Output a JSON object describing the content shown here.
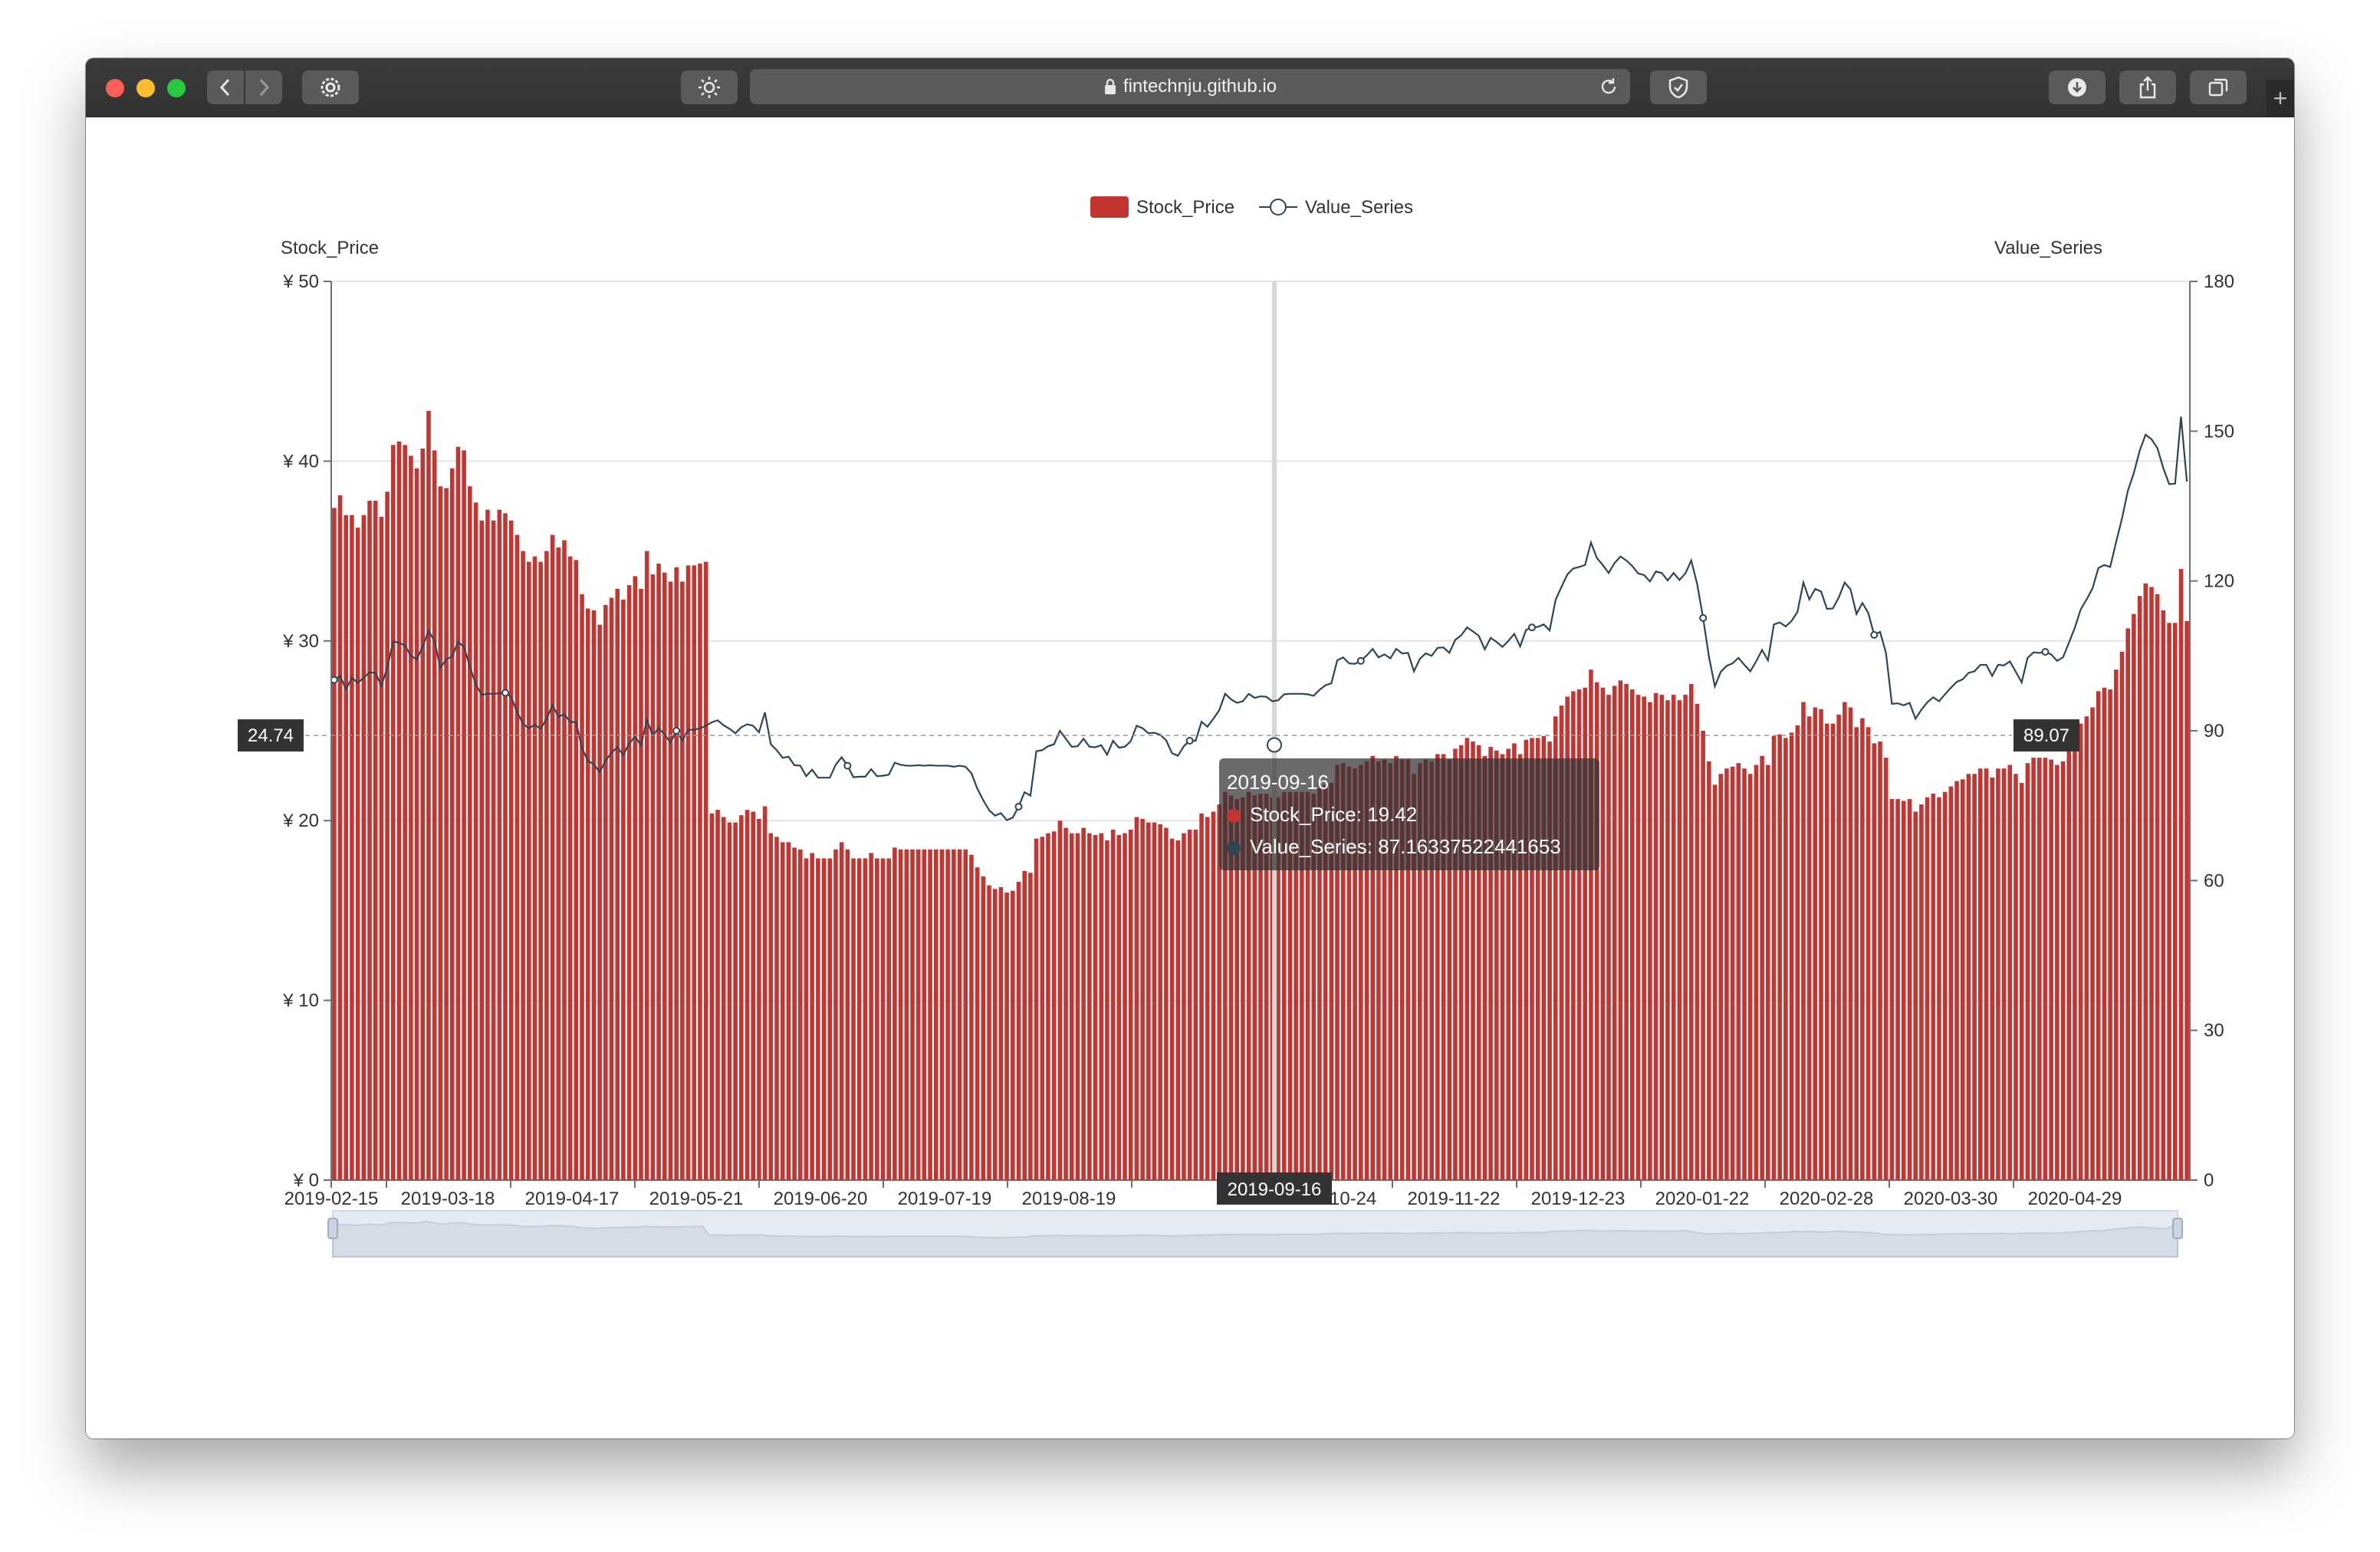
{
  "browser": {
    "url": "fintechnju.github.io"
  },
  "colors": {
    "bar": "#c23531",
    "line": "#2f4554",
    "traffic_red": "#ff5f57",
    "traffic_yellow": "#febc2e",
    "traffic_green": "#28c840"
  },
  "icons": [
    "back-icon",
    "forward-icon",
    "gear-icon",
    "brightness-icon",
    "lock-icon",
    "reload-icon",
    "shield-icon",
    "download-icon",
    "share-icon",
    "tabs-icon",
    "plus-icon"
  ],
  "tooltip": {
    "date": "2019-09-16",
    "stock_line": "Stock_Price: 19.42",
    "value_line": "Value_Series: 87.16337522441653"
  },
  "axis_pointer": {
    "left_value": "24.74",
    "right_value": "89.07",
    "x_value": "2019-09-16"
  },
  "chart_data": {
    "type": "bar",
    "legend": [
      "Stock_Price",
      "Value_Series"
    ],
    "legend_position": "top-center",
    "y_left": {
      "name": "Stock_Price",
      "min": 0,
      "max": 50,
      "ticks": [
        "¥ 0",
        "¥ 10",
        "¥ 20",
        "¥ 30",
        "¥ 40",
        "¥ 50"
      ]
    },
    "y_right": {
      "name": "Value_Series",
      "min": 0,
      "max": 180,
      "ticks": [
        "0",
        "30",
        "60",
        "90",
        "120",
        "150",
        "180"
      ]
    },
    "x_ticks": [
      "2019-02-15",
      "2019-03-18",
      "2019-04-17",
      "2019-05-21",
      "2019-06-20",
      "2019-07-19",
      "2019-08-19",
      "2019-09-16",
      "2019-10-24",
      "2019-11-22",
      "2019-12-23",
      "2020-01-22",
      "2020-02-28",
      "2020-03-30",
      "2020-04-29"
    ],
    "grid": true,
    "datazoom": true,
    "series": [
      {
        "name": "Stock_Price",
        "type": "bar",
        "values": [
          37.4,
          38.1,
          37.0,
          37.0,
          36.3,
          37.0,
          37.8,
          37.8,
          36.9,
          38.3,
          40.9,
          41.1,
          40.9,
          40.3,
          39.6,
          40.7,
          42.8,
          40.6,
          38.6,
          38.5,
          39.6,
          40.8,
          40.6,
          38.6,
          37.7,
          36.7,
          37.3,
          36.7,
          37.3,
          37.1,
          36.7,
          35.9,
          35.0,
          34.4,
          34.7,
          34.4,
          35.0,
          35.9,
          35.2,
          35.6,
          34.7,
          34.5,
          32.6,
          31.8,
          31.7,
          30.9,
          32.0,
          32.4,
          32.9,
          32.3,
          33.1,
          33.6,
          32.9,
          35.0,
          33.7,
          34.3,
          33.8,
          33.3,
          34.1,
          33.3,
          34.2,
          34.2,
          34.3,
          34.4,
          20.4,
          20.6,
          20.2,
          19.9,
          19.9,
          20.3,
          20.6,
          20.5,
          20.1,
          20.8,
          19.3,
          19.1,
          18.8,
          18.8,
          18.5,
          18.4,
          17.9,
          18.2,
          17.9,
          17.9,
          17.9,
          18.4,
          18.8,
          18.4,
          17.9,
          17.9,
          17.9,
          18.2,
          17.9,
          17.9,
          17.9,
          18.5,
          18.4,
          18.4,
          18.4,
          18.4,
          18.4,
          18.4,
          18.4,
          18.4,
          18.4,
          18.4,
          18.4,
          18.4,
          18.1,
          17.4,
          16.9,
          16.4,
          16.2,
          16.3,
          16.0,
          16.1,
          16.6,
          17.2,
          17.1,
          19.0,
          19.1,
          19.3,
          19.4,
          20.0,
          19.6,
          19.3,
          19.3,
          19.6,
          19.3,
          19.2,
          19.3,
          18.9,
          19.5,
          19.2,
          19.3,
          19.5,
          20.2,
          20.1,
          19.9,
          19.9,
          19.8,
          19.6,
          19.0,
          18.9,
          19.3,
          19.5,
          19.5,
          20.4,
          20.2,
          20.5,
          20.9,
          21.6,
          21.4,
          21.2,
          21.3,
          21.6,
          21.4,
          21.5,
          21.5,
          21.3,
          21.3,
          21.6,
          21.6,
          21.6,
          21.6,
          21.6,
          21.5,
          21.8,
          22.0,
          22.1,
          23.1,
          23.2,
          23.0,
          22.9,
          23.1,
          23.3,
          23.6,
          23.3,
          23.4,
          23.2,
          23.6,
          23.4,
          23.4,
          22.6,
          23.2,
          23.4,
          23.3,
          23.7,
          23.7,
          23.4,
          24.0,
          24.2,
          24.6,
          24.4,
          24.2,
          23.6,
          24.1,
          23.9,
          23.7,
          24.0,
          24.3,
          23.7,
          24.5,
          24.6,
          24.6,
          24.7,
          24.4,
          25.8,
          26.4,
          26.9,
          27.2,
          27.3,
          27.4,
          28.4,
          27.7,
          27.4,
          27.0,
          27.5,
          27.8,
          27.6,
          27.3,
          27.0,
          26.9,
          26.6,
          27.1,
          27.0,
          26.7,
          27.0,
          26.7,
          27.0,
          27.6,
          26.5,
          25.0,
          23.3,
          22.0,
          22.6,
          22.9,
          23.0,
          23.2,
          22.9,
          22.6,
          23.1,
          23.6,
          23.1,
          24.7,
          24.8,
          24.6,
          24.9,
          25.3,
          26.6,
          25.8,
          26.3,
          26.2,
          25.4,
          25.4,
          25.9,
          26.6,
          26.3,
          25.2,
          25.7,
          25.2,
          24.3,
          24.4,
          23.5,
          21.2,
          21.2,
          21.1,
          21.2,
          20.5,
          20.9,
          21.3,
          21.5,
          21.3,
          21.6,
          21.9,
          22.2,
          22.3,
          22.6,
          22.6,
          22.9,
          22.9,
          22.4,
          22.9,
          22.9,
          23.1,
          22.6,
          22.1,
          23.2,
          23.5,
          23.5,
          23.5,
          23.4,
          23.1,
          23.3,
          23.9,
          24.6,
          25.4,
          25.8,
          26.3,
          27.2,
          27.4,
          27.3,
          28.4,
          29.4,
          30.7,
          31.5,
          32.5,
          33.2,
          33.0,
          32.6,
          31.7,
          31.0,
          31.0,
          34.0,
          31.1
        ]
      },
      {
        "name": "Value_Series",
        "type": "line",
        "values": [
          100.2,
          101.0,
          98.3,
          100.6,
          99.6,
          100.6,
          101.7,
          101.6,
          99.0,
          102.7,
          107.9,
          107.6,
          107.1,
          105.0,
          104.3,
          106.9,
          110.0,
          108.0,
          102.6,
          104.3,
          104.9,
          107.8,
          106.8,
          102.8,
          99.3,
          97.2,
          97.4,
          97.4,
          97.5,
          97.6,
          96.7,
          93.8,
          91.4,
          90.5,
          91.2,
          90.4,
          92.4,
          95.1,
          92.8,
          93.3,
          91.8,
          91.7,
          86.5,
          84.0,
          83.3,
          81.7,
          84.0,
          85.6,
          86.7,
          85.1,
          87.5,
          88.8,
          87.1,
          92.2,
          89.0,
          90.6,
          89.2,
          87.7,
          90.0,
          88.0,
          90.2,
          90.2,
          90.5,
          91.0,
          91.7,
          92.1,
          91.1,
          90.4,
          89.5,
          90.7,
          91.3,
          91.0,
          89.7,
          93.7,
          87.3,
          86.1,
          84.6,
          84.8,
          83.1,
          83.0,
          80.9,
          82.2,
          80.6,
          80.6,
          80.6,
          83.2,
          84.7,
          83.0,
          80.7,
          80.8,
          80.8,
          82.3,
          80.9,
          81.0,
          81.2,
          83.6,
          83.2,
          83.0,
          83.0,
          83.1,
          83.0,
          83.1,
          83.0,
          83.0,
          83.0,
          82.8,
          83.0,
          82.8,
          81.5,
          78.4,
          76.1,
          74.1,
          73.0,
          73.5,
          72.1,
          72.6,
          74.8,
          77.7,
          77.0,
          85.9,
          86.1,
          86.9,
          87.3,
          90.0,
          88.4,
          86.8,
          86.9,
          88.4,
          86.8,
          86.7,
          87.1,
          85.2,
          88.0,
          86.6,
          86.8,
          87.9,
          91.0,
          90.5,
          89.5,
          89.6,
          89.2,
          88.1,
          85.5,
          85.0,
          86.9,
          88.0,
          88.0,
          91.8,
          90.8,
          92.4,
          94.1,
          97.4,
          96.3,
          95.6,
          95.9,
          97.4,
          96.6,
          96.9,
          96.8,
          95.9,
          96.1,
          97.3,
          97.4,
          97.4,
          97.4,
          97.3,
          97.0,
          98.2,
          99.1,
          99.5,
          104.1,
          104.7,
          103.5,
          103.4,
          104.0,
          105.1,
          106.4,
          104.7,
          105.3,
          104.5,
          106.4,
          105.5,
          105.6,
          101.9,
          104.4,
          105.5,
          105.0,
          106.6,
          106.7,
          105.6,
          108.2,
          109.1,
          110.7,
          109.9,
          109.0,
          106.3,
          108.6,
          107.8,
          106.8,
          108.0,
          109.4,
          106.9,
          110.2,
          110.7,
          110.8,
          111.3,
          110.1,
          116.2,
          118.8,
          121.3,
          122.5,
          122.8,
          123.2,
          127.7,
          124.6,
          123.2,
          121.6,
          123.6,
          124.9,
          124.1,
          123.0,
          121.5,
          121.2,
          119.9,
          121.9,
          121.6,
          120.1,
          121.6,
          120.2,
          121.5,
          124.1,
          119.4,
          112.6,
          104.8,
          98.9,
          101.8,
          103.0,
          103.5,
          104.6,
          103.2,
          101.9,
          103.9,
          106.2,
          104.1,
          111.3,
          111.7,
          110.9,
          112.0,
          113.8,
          119.7,
          116.3,
          118.4,
          117.9,
          114.4,
          114.5,
          116.7,
          119.7,
          118.3,
          113.4,
          115.6,
          113.6,
          109.2,
          109.8,
          105.6,
          95.4,
          95.5,
          95.1,
          95.6,
          92.4,
          94.2,
          95.7,
          96.7,
          95.9,
          97.3,
          98.6,
          99.8,
          100.3,
          101.6,
          101.9,
          103.2,
          103.2,
          101.0,
          103.2,
          103.1,
          103.9,
          101.8,
          99.7,
          104.6,
          105.7,
          105.6,
          105.8,
          105.3,
          104.0,
          104.7,
          107.6,
          110.6,
          114.3,
          116.3,
          118.5,
          122.6,
          123.2,
          122.8,
          127.8,
          132.5,
          138.1,
          141.6,
          146.1,
          149.3,
          148.4,
          146.6,
          142.6,
          139.4,
          139.5,
          152.9,
          139.9
        ]
      }
    ]
  }
}
